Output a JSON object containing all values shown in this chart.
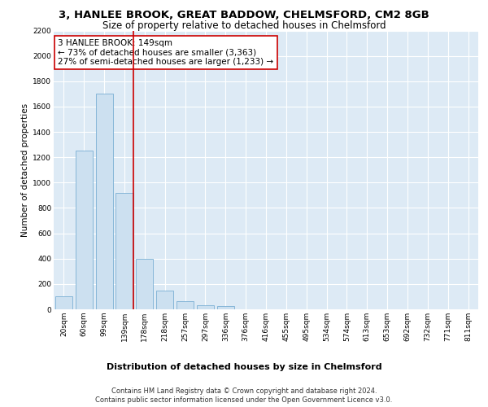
{
  "title": "3, HANLEE BROOK, GREAT BADDOW, CHELMSFORD, CM2 8GB",
  "subtitle": "Size of property relative to detached houses in Chelmsford",
  "xlabel": "Distribution of detached houses by size in Chelmsford",
  "ylabel": "Number of detached properties",
  "bar_color": "#cce0f0",
  "bar_edgecolor": "#7aafd4",
  "background_color": "#ddeaf5",
  "fig_background": "#ffffff",
  "grid_color": "#ffffff",
  "categories": [
    "20sqm",
    "60sqm",
    "99sqm",
    "139sqm",
    "178sqm",
    "218sqm",
    "257sqm",
    "297sqm",
    "336sqm",
    "376sqm",
    "416sqm",
    "455sqm",
    "495sqm",
    "534sqm",
    "574sqm",
    "613sqm",
    "653sqm",
    "692sqm",
    "732sqm",
    "771sqm",
    "811sqm"
  ],
  "values": [
    100,
    1250,
    1700,
    920,
    400,
    150,
    65,
    35,
    25,
    0,
    0,
    0,
    0,
    0,
    0,
    0,
    0,
    0,
    0,
    0,
    0
  ],
  "ylim": [
    0,
    2200
  ],
  "yticks": [
    0,
    200,
    400,
    600,
    800,
    1000,
    1200,
    1400,
    1600,
    1800,
    2000,
    2200
  ],
  "vline_x": 3.45,
  "vline_color": "#cc0000",
  "annotation_text": "3 HANLEE BROOK: 149sqm\n← 73% of detached houses are smaller (3,363)\n27% of semi-detached houses are larger (1,233) →",
  "annotation_box_color": "#ffffff",
  "annotation_box_edgecolor": "#cc0000",
  "footer_line1": "Contains HM Land Registry data © Crown copyright and database right 2024.",
  "footer_line2": "Contains public sector information licensed under the Open Government Licence v3.0.",
  "title_fontsize": 9.5,
  "subtitle_fontsize": 8.5,
  "xlabel_fontsize": 8,
  "ylabel_fontsize": 7.5,
  "tick_fontsize": 6.5,
  "annotation_fontsize": 7.5,
  "footer_fontsize": 6.0
}
